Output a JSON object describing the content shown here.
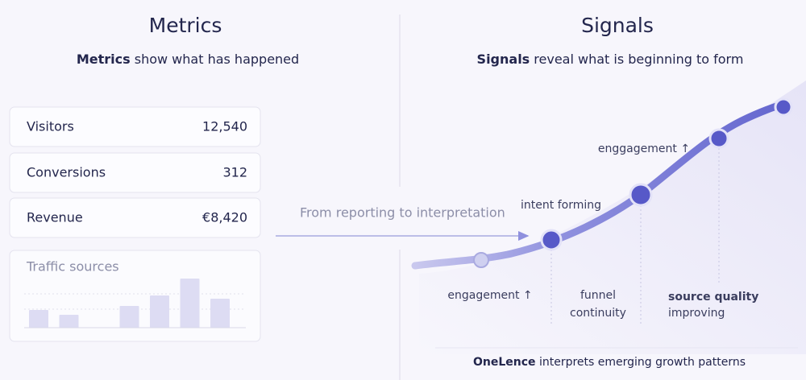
{
  "metrics": {
    "title": "Metrics",
    "subtitle": {
      "bold": "Metrics",
      "rest": "show what has happened"
    },
    "rows": [
      {
        "label": "Visitors",
        "value": "12,540"
      },
      {
        "label": "Conversions",
        "value": "312"
      },
      {
        "label": "Revenue",
        "value": "€8,420"
      }
    ],
    "traffic_sources": {
      "title": "Traffic sources",
      "values": [
        22,
        16,
        null,
        27,
        40,
        61,
        36
      ]
    }
  },
  "transition": "From reporting to interpretation",
  "signals": {
    "title": "Signals",
    "subtitle": {
      "bold": "Signals",
      "rest": "reveal what is beginning to form"
    },
    "labels": {
      "engagement": "engagement ↑",
      "intent": "intent forming",
      "enggagement": "enggagement ↑",
      "funnel": [
        "funnel",
        "continuity"
      ],
      "source": [
        "source quality",
        "improving"
      ]
    },
    "footer": {
      "bold": "OneLence",
      "rest": "interprets emerging growth patterns"
    }
  }
}
